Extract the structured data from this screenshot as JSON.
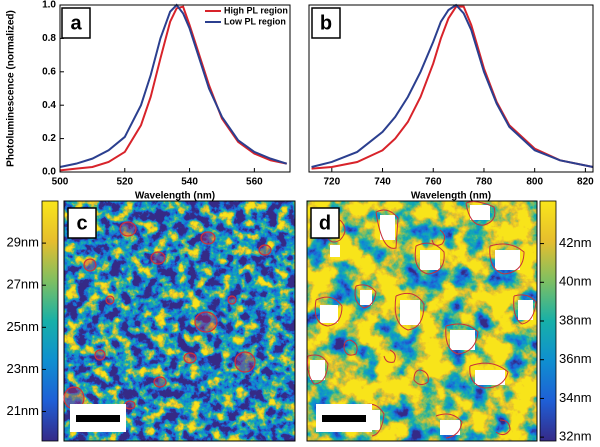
{
  "chart_data": [
    {
      "type": "line",
      "label": "a",
      "ylabel": "Photoluminescence (normalized)",
      "xlabel": "Wavelength (nm)",
      "x": [
        500,
        505,
        510,
        515,
        520,
        525,
        528,
        531,
        534,
        536,
        538,
        540,
        543,
        546,
        550,
        555,
        560,
        565,
        570
      ],
      "xlim": [
        500,
        571
      ],
      "xticks": [
        500,
        520,
        540,
        560
      ],
      "ylim": [
        0,
        1
      ],
      "yticks": [
        {
          "value": 0,
          "label": "0.0"
        },
        0.2,
        0.4,
        0.6,
        0.8,
        {
          "value": 1,
          "label": "1.0"
        }
      ],
      "legend": "upper right",
      "series": [
        {
          "name": "High PL region",
          "color": "#d8232a",
          "values": [
            0.01,
            0.02,
            0.03,
            0.06,
            0.12,
            0.28,
            0.45,
            0.68,
            0.9,
            0.98,
            0.99,
            0.88,
            0.7,
            0.52,
            0.32,
            0.18,
            0.11,
            0.07,
            0.05
          ]
        },
        {
          "name": "Low PL region",
          "color": "#2b3f8f",
          "values": [
            0.03,
            0.05,
            0.08,
            0.13,
            0.21,
            0.4,
            0.58,
            0.8,
            0.96,
            1.0,
            0.95,
            0.86,
            0.68,
            0.5,
            0.33,
            0.19,
            0.12,
            0.08,
            0.05
          ]
        }
      ]
    },
    {
      "type": "line",
      "label": "b",
      "xlabel": "Wavelength (nm)",
      "x": [
        712,
        720,
        730,
        740,
        745,
        750,
        755,
        760,
        763,
        766,
        769,
        772,
        775,
        780,
        785,
        790,
        800,
        810,
        823
      ],
      "xlim": [
        711,
        823
      ],
      "xticks": [
        720,
        740,
        760,
        780,
        800,
        820
      ],
      "ylim": [
        0,
        1
      ],
      "series": [
        {
          "color": "#d8232a",
          "values": [
            0.02,
            0.03,
            0.06,
            0.13,
            0.2,
            0.3,
            0.45,
            0.65,
            0.8,
            0.92,
            0.99,
            0.99,
            0.88,
            0.62,
            0.42,
            0.28,
            0.14,
            0.07,
            0.03
          ]
        },
        {
          "color": "#2b3f8f",
          "values": [
            0.03,
            0.06,
            0.12,
            0.24,
            0.33,
            0.45,
            0.6,
            0.78,
            0.9,
            0.97,
            1.0,
            0.95,
            0.85,
            0.6,
            0.41,
            0.27,
            0.13,
            0.07,
            0.03
          ]
        }
      ]
    },
    {
      "type": "map",
      "label": "c",
      "colormap": [
        "#352a87",
        "#1f5fd6",
        "#0f8fd0",
        "#17b0a8",
        "#7ebf62",
        "#e6be2e",
        "#f9e51a"
      ],
      "colorbar": {
        "side": "left",
        "lim": [
          19.6,
          31.0
        ],
        "ticks": [
          {
            "value": 21,
            "label": "21nm"
          },
          {
            "value": 23,
            "label": "23nm"
          },
          {
            "value": 25,
            "label": "25nm"
          },
          {
            "value": 27,
            "label": "27nm"
          },
          {
            "value": 29,
            "label": "29nm"
          }
        ]
      }
    },
    {
      "type": "map",
      "label": "d",
      "colormap": [
        "#352a87",
        "#1f5fd6",
        "#0f8fd0",
        "#17b0a8",
        "#7ebf62",
        "#e6be2e",
        "#f9e51a"
      ],
      "colorbar": {
        "side": "right",
        "lim": [
          31.8,
          44.2
        ],
        "ticks": [
          {
            "value": 32,
            "label": "32nm"
          },
          {
            "value": 34,
            "label": "34nm"
          },
          {
            "value": 36,
            "label": "36nm"
          },
          {
            "value": 38,
            "label": "38nm"
          },
          {
            "value": 40,
            "label": "40nm"
          },
          {
            "value": 42,
            "label": "42nm"
          }
        ]
      }
    }
  ]
}
